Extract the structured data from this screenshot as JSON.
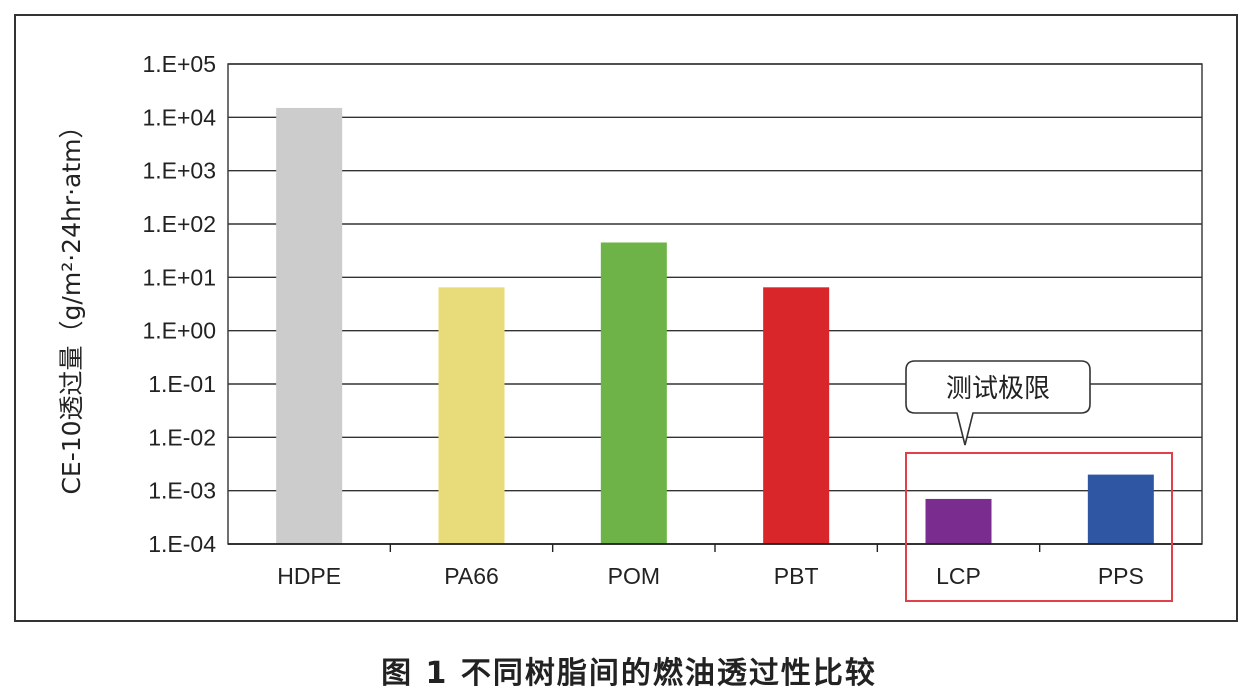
{
  "caption": "图 1  不同树脂间的燃油透过性比较",
  "chart_data": {
    "type": "bar",
    "title": "",
    "ylabel": "CE-10透过量（g/m²·24hr·atm）",
    "xlabel": "",
    "yscale": "log",
    "ylim": [
      0.0001,
      100000
    ],
    "ytick_labels": [
      "1.E-04",
      "1.E-03",
      "1.E-02",
      "1.E-01",
      "1.E+00",
      "1.E+01",
      "1.E+02",
      "1.E+03",
      "1.E+04",
      "1.E+05"
    ],
    "grid": true,
    "categories": [
      "HDPE",
      "PA66",
      "POM",
      "PBT",
      "LCP",
      "PPS"
    ],
    "values": [
      15000,
      6.5,
      45,
      6.5,
      0.0007,
      0.002
    ],
    "colors": [
      "#cccccc",
      "#e8dc7a",
      "#6db347",
      "#d9262b",
      "#7a2d8f",
      "#2f56a3"
    ],
    "annotation": {
      "text": "测试极限",
      "highlight_color": "#e0404a"
    }
  }
}
